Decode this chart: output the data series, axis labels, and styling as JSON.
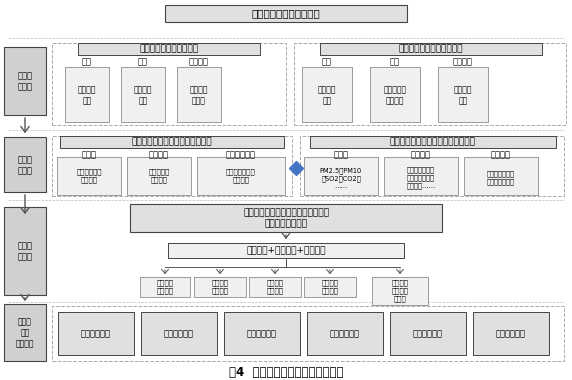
{
  "title_top": "村域建设用地承载力测算",
  "title_bottom": "图4  建设用地承载力测度理论框架",
  "left_labels": [
    {
      "text": "承载问\n题诊断",
      "yb": 0.745,
      "yt": 0.935
    },
    {
      "text": "承载内\n涵界定",
      "yb": 0.505,
      "yt": 0.69
    },
    {
      "text": "指标阈\n值测算",
      "yb": 0.285,
      "yt": 0.49
    },
    {
      "text": "承载力\n提升村\n庄规划",
      "yb": 0.04,
      "yt": 0.275
    }
  ],
  "s1_left_title": "生态脆弱区：甘肃甘州区",
  "s1_left_cols": [
    "产业",
    "用地",
    "公共设施"
  ],
  "s1_left_items": [
    "产业结构\n单一",
    "用地布局\n散乱",
    "基础设施\n不健全"
  ],
  "s1_right_title": "农产品主产区：江苏东台市",
  "s1_right_cols": [
    "产业",
    "用地",
    "公共设施"
  ],
  "s1_right_items": [
    "产业用地\n分散",
    "开发强度大\n利用粗放",
    "水土污染\n严重"
  ],
  "s2_left_title": "村域建设用地对人口、产业的承载",
  "s2_left_cols": [
    "宅基地",
    "产业用地",
    "公共设施用地"
  ],
  "s2_left_items": [
    "人均宅基地、\n人口规模",
    "产出目标、\n地均产出",
    "人均设施用地、\n人口规模"
  ],
  "s2_right_title": "村域生态环境对建设用地承载的约束",
  "s2_right_cols": [
    "污染物",
    "生态环境",
    "建设用地"
  ],
  "s2_right_items": [
    "PM2.5、PM10\n、SO2、CO2、\n……",
    "生境质量、水土\n保持、碳固存、\n水源涵养……",
    "用地规模、用地\n结构、空间格局"
  ],
  "s3_title": "村镇建设用地承载力关键限制性因素\n阈值测度模型构建",
  "s3_sub": "产出预期+环境约束+农户意愿",
  "s3_items": [
    "产业准入\n正负清单",
    "建设用地\n集约利用",
    "建设用地\n格局管控",
    "基础公共\n设施配套",
    "村庄肌理\n与景观风\n貌保护"
  ],
  "s4_items": [
    "开发强度标准",
    "地均产出标准",
    "人均用地标准",
    "景观格局标准",
    "产业清单目录",
    "村庄设计标准"
  ],
  "white": "#ffffff",
  "light_gray": "#f0f0f0",
  "mid_gray": "#e0e0e0",
  "dark_gray": "#c8c8c8",
  "label_gray": "#d0d0d0",
  "border_dark": "#444444",
  "border_mid": "#777777",
  "border_light": "#aaaaaa",
  "blue_diamond": "#4472c4",
  "arrow_color": "#555555"
}
